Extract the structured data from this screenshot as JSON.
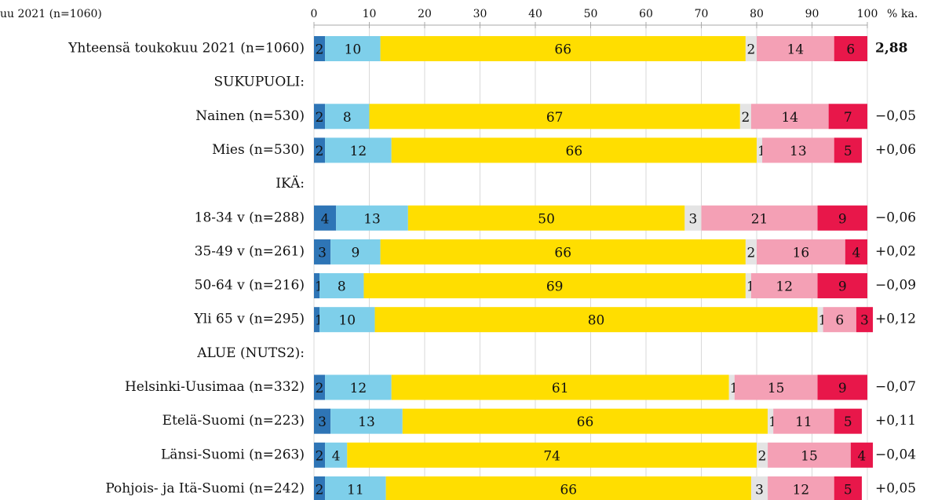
{
  "chart_data": {
    "type": "stacked-bar-horizontal",
    "title": "uu 2021 (n=1060)",
    "unit": "%",
    "avg_header": "ka.",
    "categories": [
      "Yhteensä toukokuu 2021 (n=1060)",
      "SUKUPUOLI:",
      "Nainen (n=530)",
      "Mies (n=530)",
      "IKÄ:",
      "18-34 v (n=288)",
      "35-49 v (n=261)",
      "50-64 v (n=216)",
      "Yli 65 v (n=295)",
      "ALUE (NUTS2):",
      "Helsinki-Uusimaa (n=332)",
      "Etelä-Suomi (n=223)",
      "Länsi-Suomi (n=263)",
      "Pohjois- ja Itä-Suomi (n=242)"
    ],
    "averages": [
      "2,88",
      null,
      "−0,05",
      "+0,06",
      null,
      "−0,06",
      "+0,02",
      "−0,09",
      "+0,12",
      null,
      "−0,07",
      "+0,11",
      "−0,04",
      "+0,05"
    ],
    "series": [
      {
        "color": "#2e75b6",
        "text_color": "#ffffff",
        "values": [
          2,
          null,
          2,
          2,
          null,
          4,
          3,
          1,
          1,
          null,
          2,
          3,
          2,
          2
        ]
      },
      {
        "color": "#7ecfea",
        "text_color": "#111111",
        "values": [
          10,
          null,
          8,
          12,
          null,
          13,
          9,
          8,
          10,
          null,
          12,
          13,
          4,
          11
        ]
      },
      {
        "color": "#ffde00",
        "text_color": "#111111",
        "values": [
          66,
          null,
          67,
          66,
          null,
          50,
          66,
          69,
          80,
          null,
          61,
          66,
          74,
          66
        ]
      },
      {
        "color": "#e4e4e4",
        "text_color": "#111111",
        "values": [
          2,
          null,
          2,
          1,
          null,
          3,
          2,
          1,
          1,
          null,
          1,
          1,
          2,
          3
        ]
      },
      {
        "color": "#f4a0b5",
        "text_color": "#111111",
        "values": [
          14,
          null,
          14,
          13,
          null,
          21,
          16,
          12,
          6,
          null,
          15,
          11,
          15,
          12
        ]
      },
      {
        "color": "#e8174a",
        "text_color": "#ffffff",
        "values": [
          6,
          null,
          7,
          5,
          null,
          9,
          4,
          9,
          3,
          null,
          9,
          5,
          4,
          5
        ]
      }
    ],
    "xlim": [
      0,
      100
    ],
    "xticks": [
      0,
      10,
      20,
      30,
      40,
      50,
      60,
      70,
      80,
      90,
      100
    ],
    "grid": true
  }
}
